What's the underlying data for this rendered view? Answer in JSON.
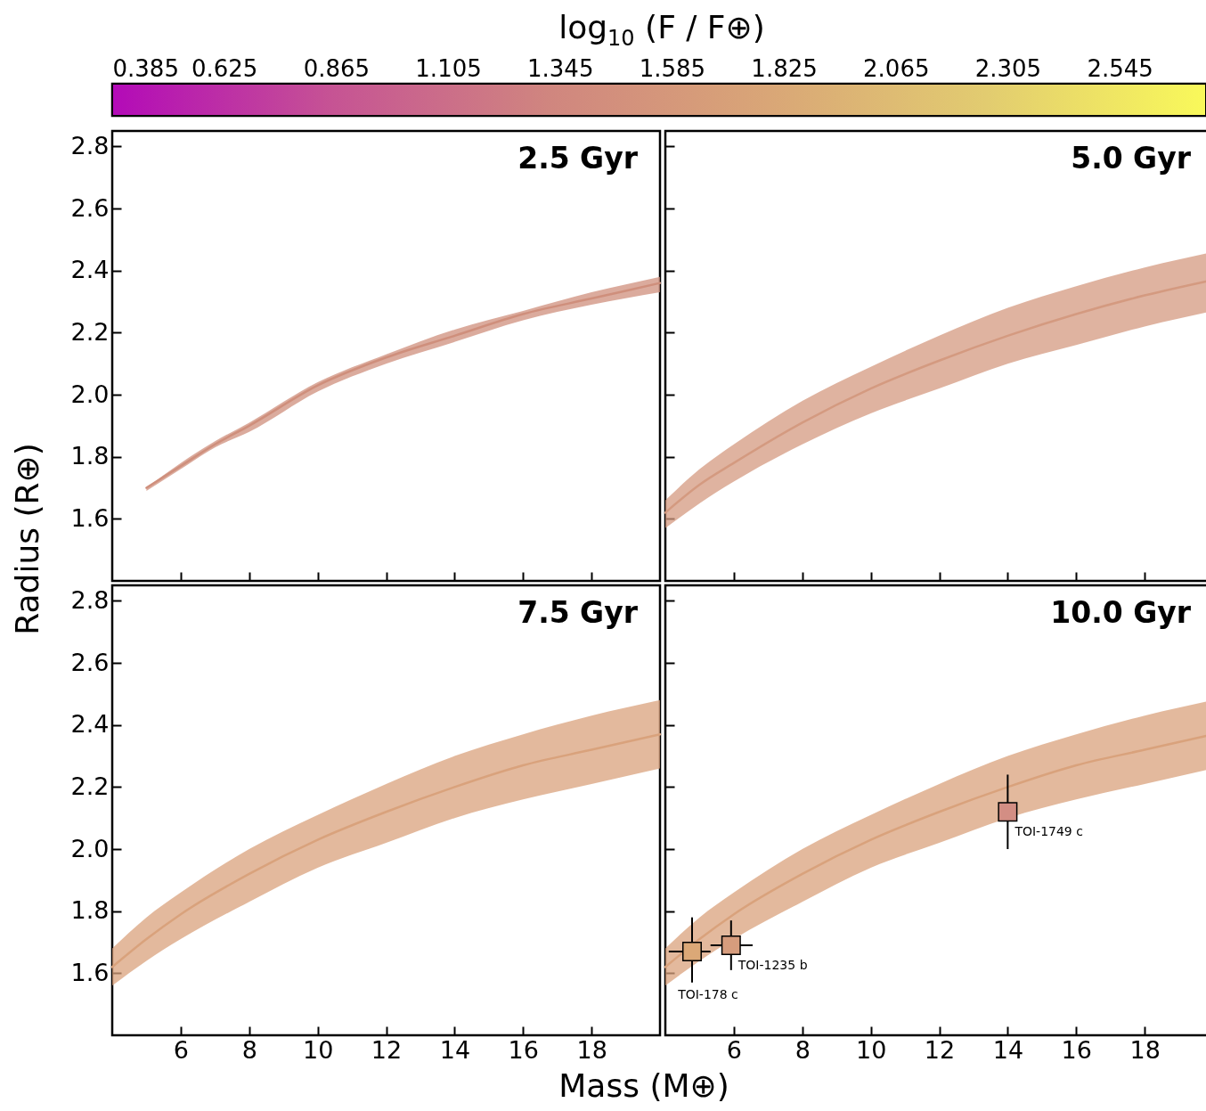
{
  "chart_data": [
    {
      "type": "line",
      "title": "2.5 Gyr",
      "ylabel": "Radius (R⊕)",
      "xlim": [
        4,
        20
      ],
      "xticks": [
        6,
        8,
        10,
        12,
        14,
        16,
        18
      ],
      "ylim": [
        1.4,
        2.85
      ],
      "yticks": [
        1.6,
        1.8,
        {
          "value": 2,
          "label": "2.0"
        },
        2.2,
        2.4,
        2.6,
        2.8
      ],
      "tick_labels": "y",
      "grid": false,
      "series": [
        {
          "x": [
            5,
            6,
            7,
            8,
            10,
            12,
            14,
            16,
            18,
            20
          ],
          "color": "#cf8f7c",
          "values": [
            1.7,
            1.77,
            1.84,
            1.9,
            2.03,
            2.12,
            2.19,
            2.26,
            2.31,
            2.36
          ],
          "upper": [
            1.7,
            1.78,
            1.85,
            1.91,
            2.04,
            2.13,
            2.21,
            2.27,
            2.33,
            2.38
          ],
          "lower": [
            1.69,
            1.76,
            1.83,
            1.88,
            2.01,
            2.1,
            2.17,
            2.24,
            2.29,
            2.33
          ]
        }
      ]
    },
    {
      "type": "line",
      "title": "5.0 Gyr",
      "xlim": [
        4,
        20
      ],
      "xticks": [
        6,
        8,
        10,
        12,
        14,
        16,
        18
      ],
      "ylim": [
        1.4,
        2.85
      ],
      "yticks": [
        1.6,
        1.8,
        2.0,
        2.2,
        2.4,
        2.6,
        2.8
      ],
      "tick_labels": false,
      "grid": false,
      "series": [
        {
          "x": [
            4,
            5,
            6,
            8,
            10,
            12,
            14,
            16,
            18,
            20
          ],
          "color": "#d49a80",
          "values": [
            1.62,
            1.71,
            1.78,
            1.91,
            2.02,
            2.11,
            2.19,
            2.26,
            2.32,
            2.37
          ],
          "upper": [
            1.66,
            1.76,
            1.84,
            1.98,
            2.09,
            2.19,
            2.28,
            2.35,
            2.41,
            2.46
          ],
          "lower": [
            1.57,
            1.65,
            1.72,
            1.84,
            1.94,
            2.02,
            2.1,
            2.16,
            2.22,
            2.27
          ]
        }
      ]
    },
    {
      "type": "line",
      "title": "7.5 Gyr",
      "xlabel": "Mass (M⊕)",
      "xlim": [
        4,
        20
      ],
      "xticks": [
        6,
        8,
        10,
        12,
        14,
        16,
        18
      ],
      "ylim": [
        1.4,
        2.85
      ],
      "yticks": [
        1.6,
        1.8,
        {
          "value": 2,
          "label": "2.0"
        },
        2.2,
        2.4,
        2.6,
        2.8
      ],
      "grid": false,
      "series": [
        {
          "x": [
            4,
            5,
            6,
            8,
            10,
            12,
            14,
            16,
            18,
            20
          ],
          "color": "#d9a27c",
          "values": [
            1.62,
            1.71,
            1.79,
            1.92,
            2.03,
            2.12,
            2.2,
            2.27,
            2.32,
            2.37
          ],
          "upper": [
            1.68,
            1.78,
            1.86,
            2.0,
            2.11,
            2.21,
            2.3,
            2.37,
            2.43,
            2.48
          ],
          "lower": [
            1.56,
            1.64,
            1.71,
            1.83,
            1.94,
            2.02,
            2.1,
            2.16,
            2.21,
            2.26
          ]
        }
      ]
    },
    {
      "type": "line",
      "title": "10.0 Gyr",
      "clabel": "log$_{10}$ (F / F⊕)",
      "clim": [
        0.385,
        2.73
      ],
      "cticks": [
        0.385,
        0.625,
        0.865,
        1.105,
        1.345,
        1.585,
        1.825,
        2.065,
        2.305,
        2.545
      ],
      "xlim": [
        4,
        20
      ],
      "xticks": [
        6,
        8,
        10,
        12,
        14,
        16,
        18
      ],
      "ylim": [
        1.4,
        2.85
      ],
      "yticks": [
        1.6,
        1.8,
        2.0,
        2.2,
        2.4,
        2.6,
        2.8
      ],
      "tick_labels": "x",
      "grid": false,
      "series": [
        {
          "x": [
            4,
            5,
            6,
            8,
            10,
            12,
            14,
            16,
            18,
            20
          ],
          "color": "#d9a27c",
          "values": [
            1.62,
            1.71,
            1.79,
            1.92,
            2.03,
            2.12,
            2.2,
            2.27,
            2.32,
            2.37
          ],
          "upper": [
            1.68,
            1.78,
            1.86,
            2.0,
            2.11,
            2.21,
            2.3,
            2.37,
            2.43,
            2.48
          ],
          "lower": [
            1.56,
            1.64,
            1.71,
            1.83,
            1.94,
            2.02,
            2.1,
            2.16,
            2.21,
            2.26
          ]
        },
        {
          "type": "scatter",
          "marker": "square",
          "x": [
            4.78,
            5.92,
            14.0
          ],
          "values": [
            1.67,
            1.69,
            2.12
          ],
          "errors": [
            [
              1.57,
              1.78
            ],
            [
              1.61,
              1.77
            ],
            [
              2.0,
              2.24
            ]
          ],
          "xerrors": [
            [
              4.1,
              5.32
            ],
            [
              5.32,
              6.55
            ],
            null
          ],
          "colors": [
            "#dba877",
            "#d69c7d",
            "#d38e84"
          ]
        }
      ],
      "annotations": [
        {
          "text": "TOI-178 c",
          "x": 4.78,
          "y": 1.67
        },
        {
          "text": "TOI-1235 b",
          "x": 5.92,
          "y": 1.69
        },
        {
          "text": "TOI-1749 c",
          "x": 14.0,
          "y": 2.12
        }
      ]
    }
  ]
}
